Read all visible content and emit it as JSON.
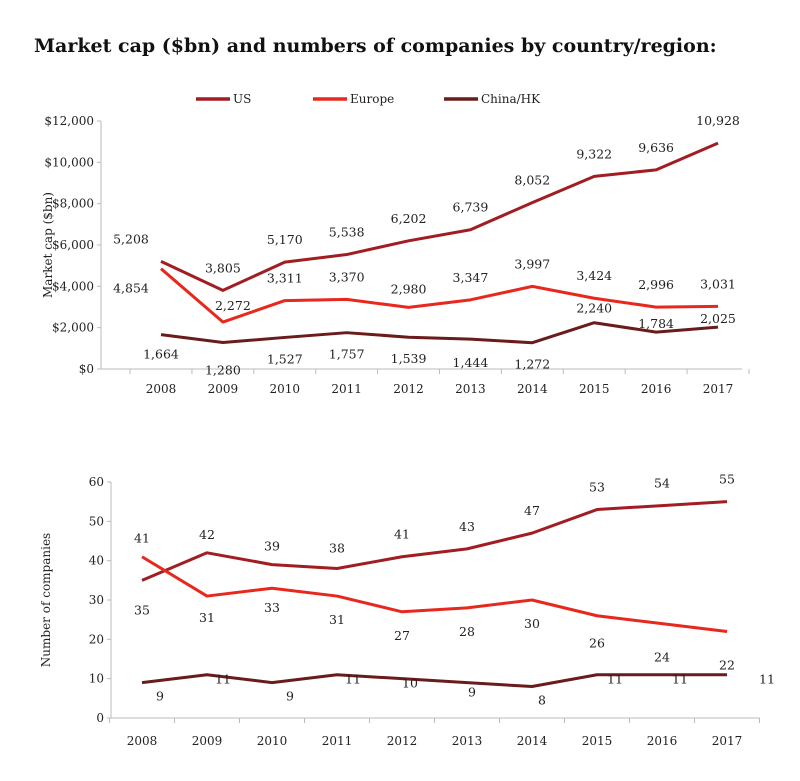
{
  "title": "Market cap ($bn) and numbers of companies by country/region:",
  "colors": {
    "US": "#a11d22",
    "Europe": "#e8281d",
    "China/HK": "#6a1b1b"
  },
  "chart_data": [
    {
      "type": "line",
      "categories": [
        "2008",
        "2009",
        "2010",
        "2011",
        "2012",
        "2013",
        "2014",
        "2015",
        "2016",
        "2017"
      ],
      "ylabel": "Market cap ($bn)",
      "xlabel": "",
      "ylim": [
        0,
        12000
      ],
      "yticks": [
        0,
        2000,
        4000,
        6000,
        8000,
        10000,
        12000
      ],
      "ytick_labels": [
        "$0",
        "$2,000",
        "$4,000",
        "$6,000",
        "$8,000",
        "$10,000",
        "$12,000"
      ],
      "legend": "top",
      "grid": false,
      "series": [
        {
          "name": "US",
          "values": [
            5208,
            3805,
            5170,
            5538,
            6202,
            6739,
            8052,
            9322,
            9636,
            10928
          ],
          "labels": [
            "5,208",
            "3,805",
            "5,170",
            "5,538",
            "6,202",
            "6,739",
            "8,052",
            "9,322",
            "9,636",
            "10,928"
          ]
        },
        {
          "name": "Europe",
          "values": [
            4854,
            2272,
            3311,
            3370,
            2980,
            3347,
            3997,
            3424,
            2996,
            3031
          ],
          "labels": [
            "4,854",
            "2,272",
            "3,311",
            "3,370",
            "2,980",
            "3,347",
            "3,997",
            "3,424",
            "2,996",
            "3,031"
          ]
        },
        {
          "name": "China/HK",
          "values": [
            1664,
            1280,
            1527,
            1757,
            1539,
            1444,
            1272,
            2240,
            1784,
            2025
          ],
          "labels": [
            "1,664",
            "1,280",
            "1,527",
            "1,757",
            "1,539",
            "1,444",
            "1,272",
            "2,240",
            "1,784",
            "2,025"
          ]
        }
      ]
    },
    {
      "type": "line",
      "categories": [
        "2008",
        "2009",
        "2010",
        "2011",
        "2012",
        "2013",
        "2014",
        "2015",
        "2016",
        "2017"
      ],
      "ylabel": "Number of companies",
      "xlabel": "",
      "ylim": [
        0,
        60
      ],
      "yticks": [
        0,
        10,
        20,
        30,
        40,
        50,
        60
      ],
      "ytick_labels": [
        "0",
        "10",
        "20",
        "30",
        "40",
        "50",
        "60"
      ],
      "grid": false,
      "series": [
        {
          "name": "US",
          "values": [
            35,
            42,
            39,
            38,
            41,
            43,
            47,
            53,
            54,
            55
          ],
          "labels": [
            "35",
            "42",
            "39",
            "38",
            "41",
            "43",
            "47",
            "53",
            "54",
            "55"
          ]
        },
        {
          "name": "Europe",
          "values": [
            41,
            31,
            33,
            31,
            27,
            28,
            30,
            26,
            24,
            22
          ],
          "labels": [
            "41",
            "31",
            "33",
            "31",
            "27",
            "28",
            "30",
            "26",
            "24",
            "22"
          ]
        },
        {
          "name": "China/HK",
          "values": [
            9,
            11,
            9,
            11,
            10,
            9,
            8,
            11,
            11,
            11
          ],
          "labels": [
            "9",
            "11",
            "9",
            "11",
            "10",
            "9",
            "8",
            "11",
            "11",
            "11"
          ]
        }
      ]
    }
  ]
}
